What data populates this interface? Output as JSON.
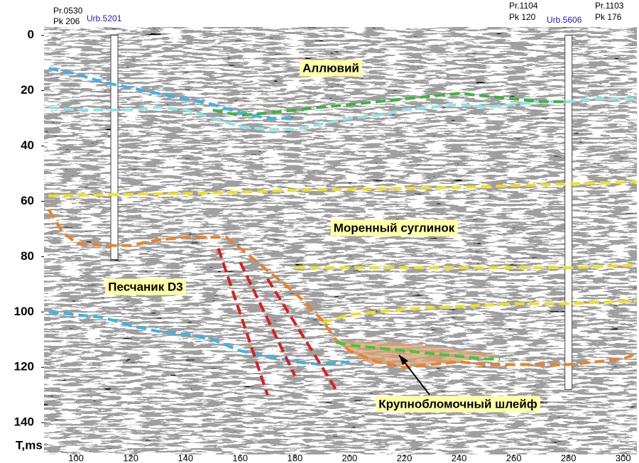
{
  "chart_data": {
    "type": "line",
    "line_style": "dashed",
    "y_direction": "down",
    "y_label": "T,ms",
    "xlim": [
      88.3,
      305
    ],
    "ylim": [
      -3,
      151.5
    ],
    "xticks": [
      100,
      120,
      140,
      160,
      180,
      200,
      220,
      240,
      260,
      280,
      300
    ],
    "yticks": [
      0,
      20,
      40,
      60,
      80,
      100,
      120,
      140
    ],
    "top_labels": [
      "Pr.0530",
      "Pk 206",
      "Urb.5201",
      "Pr.1104",
      "Pk 120",
      "Urb.5606",
      "Pr.1103",
      "Pk 176"
    ],
    "annotations": [
      "Аллювий",
      "Моренный суглинок",
      "Песчаник D3",
      "Крупнобломочный шлейф"
    ],
    "wells": [
      {
        "x": 114,
        "values": [
          0,
          81
        ]
      },
      {
        "x": 280,
        "values": [
          0,
          128
        ]
      }
    ],
    "series": [
      {
        "color": "#3cb4e6",
        "x": [
          90,
          100,
          110,
          120,
          130,
          140,
          150,
          160,
          170,
          180
        ],
        "values": [
          12,
          14,
          17,
          19,
          21,
          23,
          25,
          28,
          30,
          30
        ]
      },
      {
        "color": "#8ee4ec",
        "x": [
          90,
          100,
          110,
          120,
          130,
          140,
          150,
          160,
          170,
          180,
          190,
          200,
          210,
          220,
          230,
          240,
          250,
          260,
          270,
          280,
          290,
          300,
          305
        ],
        "values": [
          26,
          27,
          27,
          27,
          26,
          27,
          30,
          33,
          34,
          34,
          32,
          30,
          29,
          27,
          26,
          25,
          26,
          25,
          24,
          24,
          23,
          23,
          23
        ]
      },
      {
        "color": "#3cb43c",
        "x": [
          150,
          160,
          170,
          180,
          190,
          200,
          210,
          220,
          230,
          240,
          250,
          260,
          270,
          280
        ],
        "values": [
          27,
          29,
          28,
          27,
          26,
          25,
          24,
          23,
          22,
          21,
          22,
          23,
          24,
          24
        ]
      },
      {
        "color": "#f0e020",
        "x": [
          90,
          120,
          150,
          180,
          210,
          240,
          270,
          305
        ],
        "values": [
          58,
          57.5,
          57,
          56,
          55.5,
          55,
          54,
          53
        ]
      },
      {
        "color": "#f08020",
        "x": [
          90,
          95,
          100,
          110,
          120,
          130,
          140,
          150,
          155,
          160,
          170,
          180,
          190,
          195,
          200,
          210,
          220,
          230,
          240,
          250,
          260,
          270,
          280,
          290,
          300,
          305
        ],
        "values": [
          63,
          71,
          75,
          76,
          76,
          74,
          73,
          73,
          73,
          77,
          85,
          93,
          103,
          110,
          114,
          118,
          120,
          119,
          118,
          119,
          119,
          119,
          119,
          118,
          117,
          115
        ]
      },
      {
        "color": "#f0e020",
        "x": [
          180,
          200,
          240,
          280,
          305
        ],
        "values": [
          84,
          84,
          84,
          84,
          83
        ]
      },
      {
        "color": "#f0e020",
        "x": [
          190,
          200,
          220,
          240,
          260,
          280,
          305
        ],
        "values": [
          104,
          101,
          99,
          98,
          97,
          97,
          96
        ]
      },
      {
        "color": "#3cb4e6",
        "x": [
          90,
          100,
          110,
          120,
          130,
          140,
          150,
          160,
          170,
          180,
          190,
          200
        ],
        "values": [
          100,
          101,
          102,
          105,
          107,
          108,
          110,
          114,
          116,
          118,
          119,
          118
        ]
      },
      {
        "color": "#3cc83c",
        "x": [
          195,
          200,
          210,
          220,
          230,
          240,
          250,
          255
        ],
        "values": [
          111,
          112,
          113,
          114,
          115,
          116,
          117,
          117
        ]
      },
      {
        "color": "#dc1e1e",
        "x": [
          152,
          170
        ],
        "values": [
          77,
          130
        ]
      },
      {
        "color": "#dc1e1e",
        "x": [
          160,
          180
        ],
        "values": [
          82,
          123
        ]
      },
      {
        "color": "#dc1e1e",
        "x": [
          170,
          195
        ],
        "values": [
          88,
          128
        ]
      }
    ]
  }
}
